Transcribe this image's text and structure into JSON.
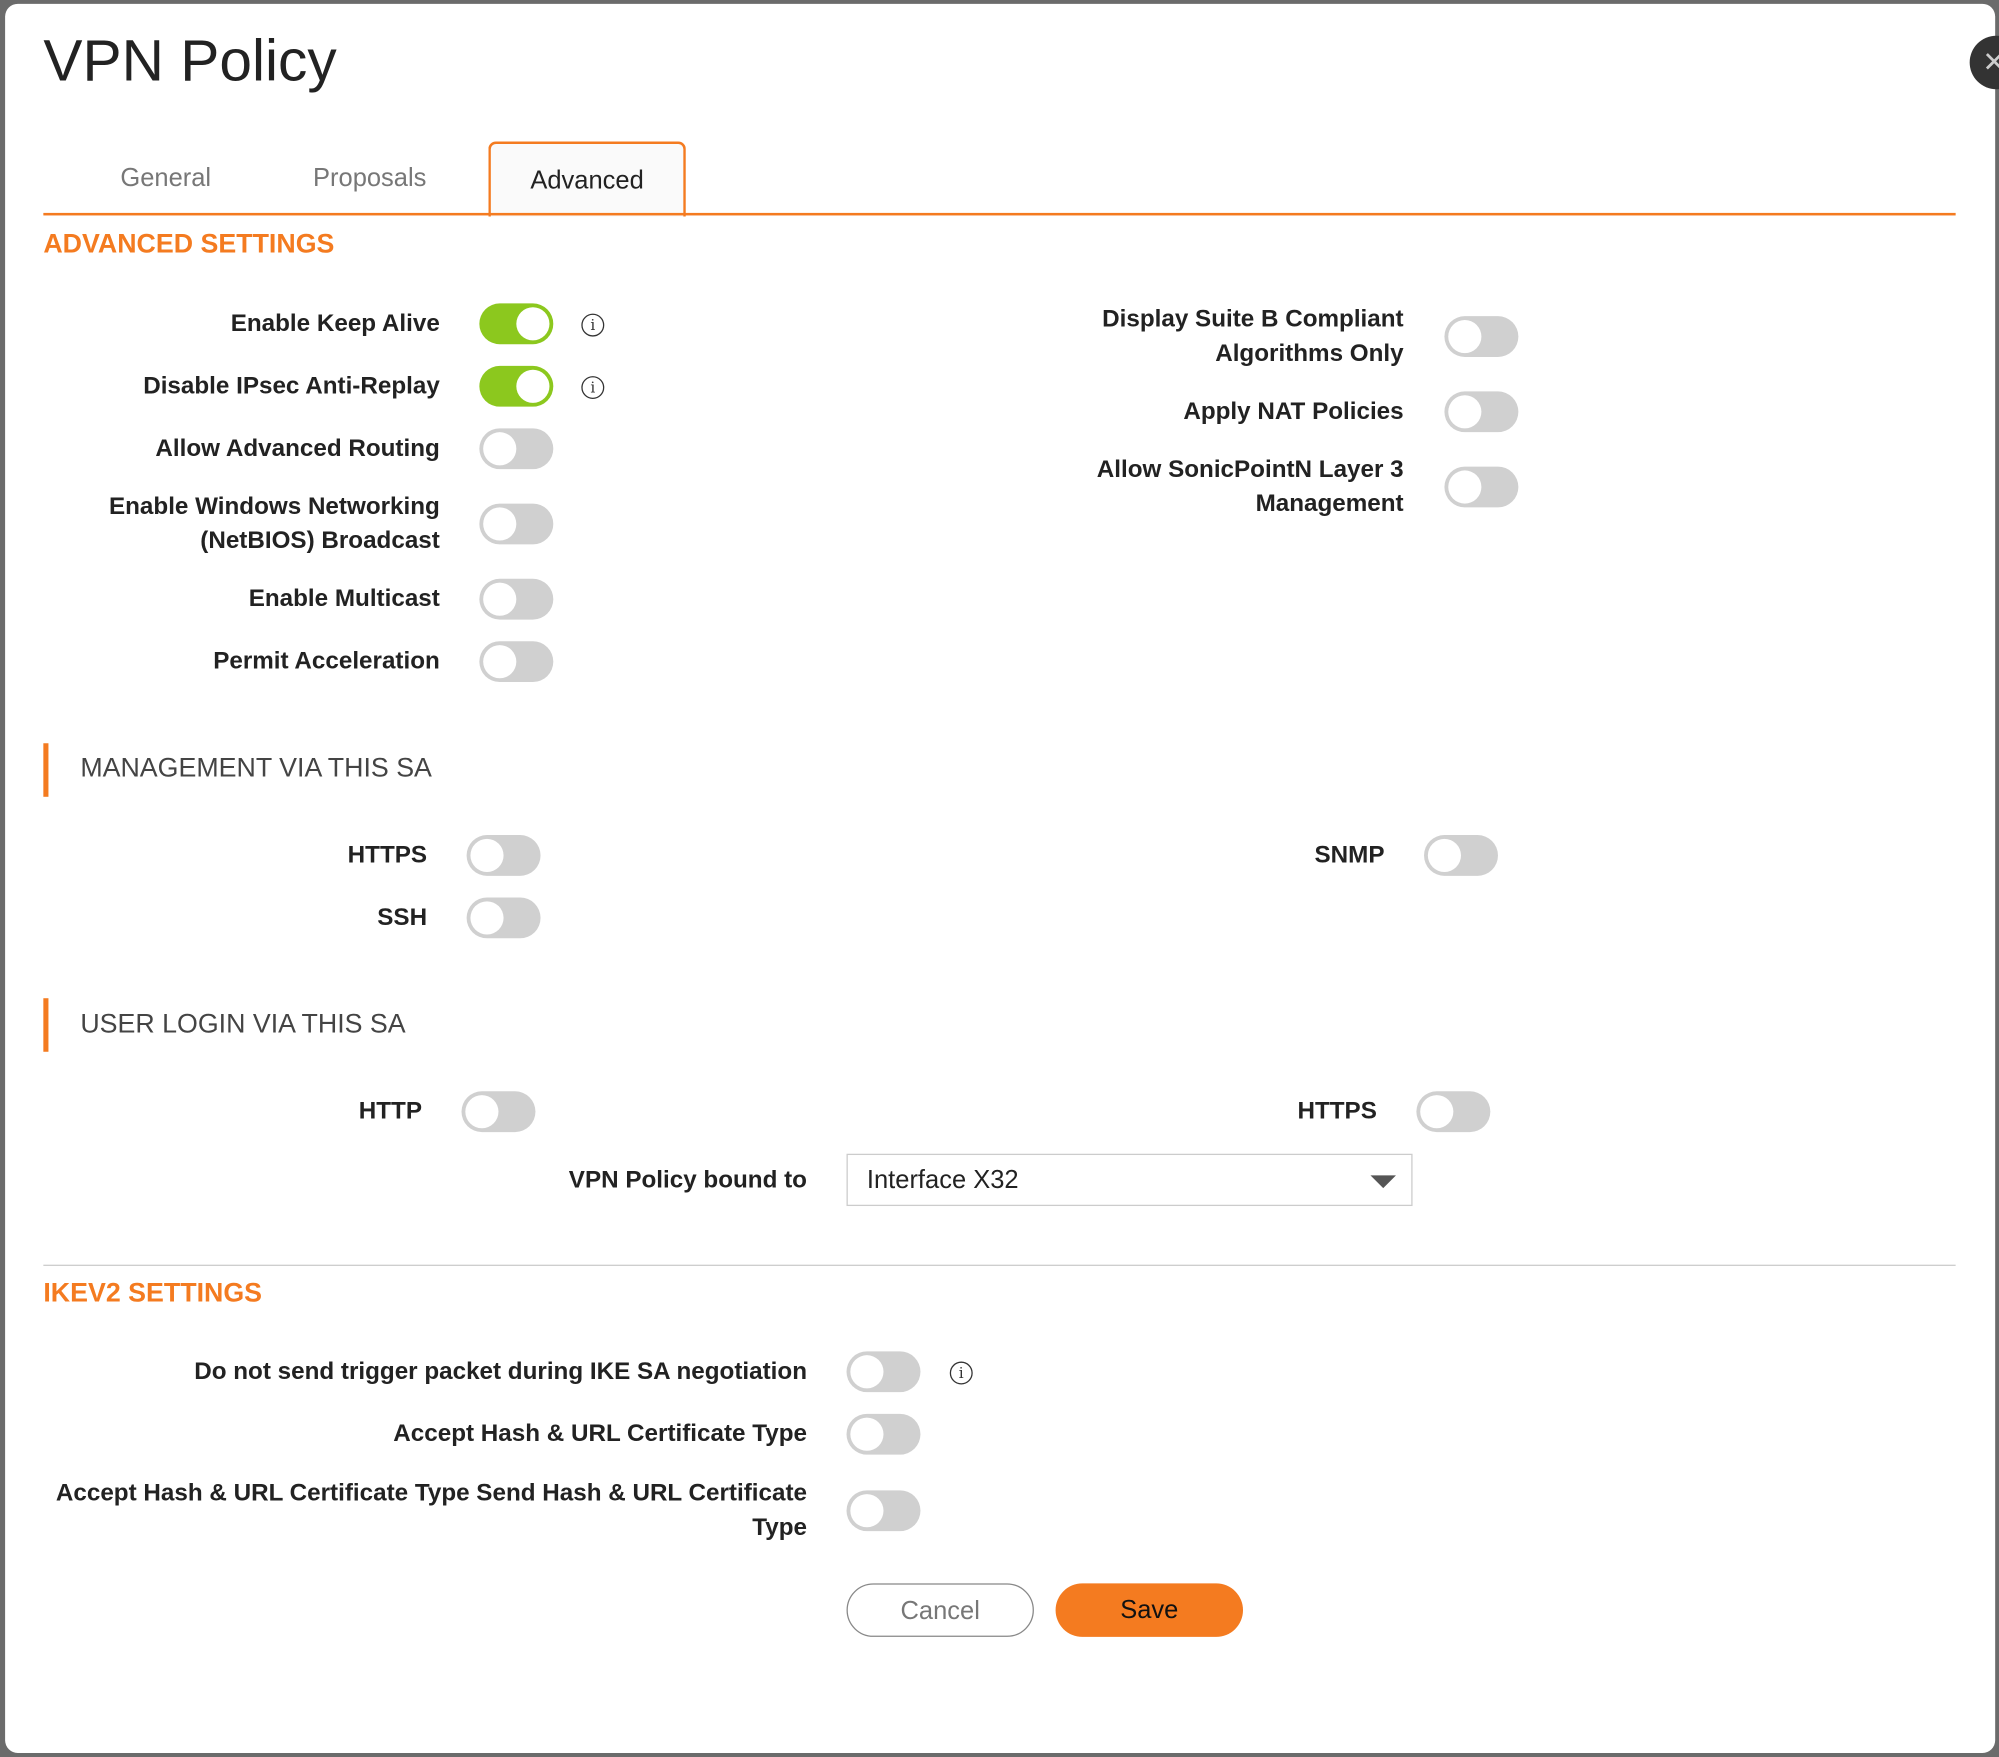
{
  "dialog": {
    "title": "VPN Policy",
    "close_icon": "close-icon"
  },
  "tabs": [
    {
      "label": "General"
    },
    {
      "label": "Proposals"
    },
    {
      "label": "Advanced",
      "active": true
    }
  ],
  "advanced": {
    "heading": "ADVANCED SETTINGS",
    "left": [
      {
        "label": "Enable Keep Alive",
        "on": true,
        "info": true
      },
      {
        "label": "Disable IPsec Anti-Replay",
        "on": true,
        "info": true
      },
      {
        "label": "Allow Advanced Routing",
        "on": false
      },
      {
        "label": "Enable Windows Networking (NetBIOS) Broadcast",
        "on": false
      },
      {
        "label": "Enable Multicast",
        "on": false
      },
      {
        "label": "Permit Acceleration",
        "on": false
      }
    ],
    "right": [
      {
        "label": "Display Suite B Compliant Algorithms Only",
        "on": false
      },
      {
        "label": "Apply NAT Policies",
        "on": false
      },
      {
        "label": "Allow SonicPointN Layer 3 Management",
        "on": false
      }
    ]
  },
  "management": {
    "heading": "MANAGEMENT VIA THIS SA",
    "items": [
      {
        "label": "HTTPS",
        "on": false
      },
      {
        "label": "SSH",
        "on": false
      },
      {
        "label": "SNMP",
        "on": false
      }
    ]
  },
  "user_login": {
    "heading": "USER LOGIN VIA THIS SA",
    "items": [
      {
        "label": "HTTP",
        "on": false
      },
      {
        "label": "HTTPS",
        "on": false
      }
    ],
    "bound_label": "VPN Policy bound to",
    "bound_value": "Interface X32"
  },
  "ikev2": {
    "heading": "IKEV2 SETTINGS",
    "items": [
      {
        "label": "Do not send trigger packet during IKE SA negotiation",
        "on": false,
        "info": true
      },
      {
        "label": "Accept Hash & URL Certificate Type",
        "on": false
      },
      {
        "label": "Accept Hash & URL Certificate Type Send Hash & URL Certificate Type",
        "on": false
      }
    ]
  },
  "buttons": {
    "cancel": "Cancel",
    "save": "Save"
  },
  "colors": {
    "accent": "#f47b20",
    "toggle_on": "#8cc81e",
    "toggle_off": "#d0d0d0"
  }
}
